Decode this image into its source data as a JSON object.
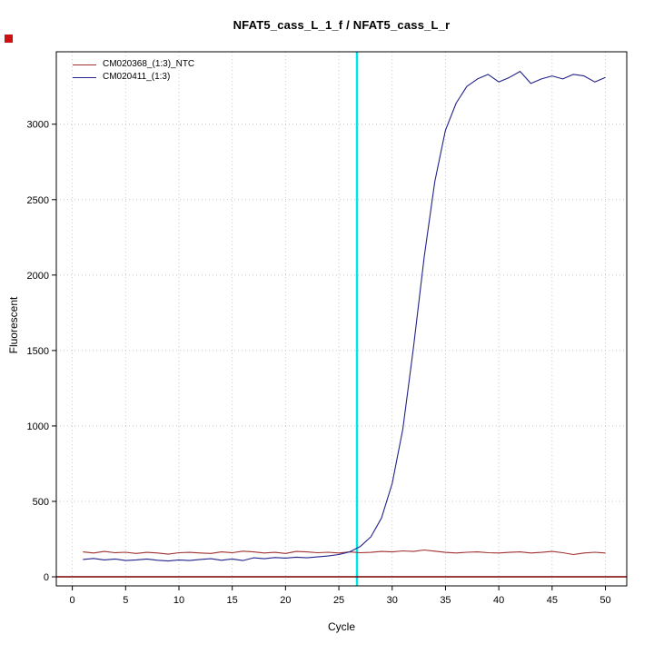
{
  "chart_data": {
    "type": "line",
    "title": "NFAT5_cass_L_1_f / NFAT5_cass_L_r",
    "xlabel": "Cycle",
    "ylabel": "Fluorescent",
    "xlim": [
      -1.5,
      52
    ],
    "ylim": [
      -60,
      3480
    ],
    "xticks": [
      0,
      5,
      10,
      15,
      20,
      25,
      30,
      35,
      40,
      45,
      50
    ],
    "yticks": [
      0,
      500,
      1000,
      1500,
      2000,
      2500,
      3000
    ],
    "grid": true,
    "grid_color": "#c8c8c8",
    "legend_position": "top-left",
    "x": [
      1,
      2,
      3,
      4,
      5,
      6,
      7,
      8,
      9,
      10,
      11,
      12,
      13,
      14,
      15,
      16,
      17,
      18,
      19,
      20,
      21,
      22,
      23,
      24,
      25,
      26,
      27,
      28,
      29,
      30,
      31,
      32,
      33,
      34,
      35,
      36,
      37,
      38,
      39,
      40,
      41,
      42,
      43,
      44,
      45,
      46,
      47,
      48,
      49,
      50
    ],
    "series": [
      {
        "name": "CM020368_(1:3)_NTC",
        "color": "#a03030",
        "values": [
          165,
          158,
          168,
          160,
          163,
          155,
          162,
          158,
          150,
          160,
          162,
          158,
          155,
          165,
          160,
          170,
          165,
          158,
          162,
          155,
          168,
          165,
          160,
          163,
          158,
          165,
          160,
          162,
          168,
          165,
          172,
          168,
          178,
          170,
          162,
          158,
          163,
          165,
          160,
          158,
          162,
          165,
          158,
          162,
          168,
          160,
          148,
          158,
          163,
          158
        ]
      },
      {
        "name": "CM020411_(1:3)",
        "color": "#22228a",
        "values": [
          115,
          122,
          112,
          118,
          108,
          112,
          118,
          110,
          105,
          112,
          108,
          115,
          120,
          110,
          118,
          108,
          126,
          120,
          128,
          124,
          130,
          126,
          132,
          138,
          148,
          165,
          200,
          265,
          390,
          620,
          980,
          1520,
          2120,
          2620,
          2960,
          3140,
          3250,
          3300,
          3330,
          3280,
          3310,
          3350,
          3270,
          3300,
          3320,
          3300,
          3330,
          3320,
          3280,
          3310
        ]
      }
    ],
    "threshold_line": {
      "x": 26.7,
      "color": "#00e5e5"
    },
    "baseline": {
      "y": 0,
      "color": "#7a0000"
    }
  },
  "marker": {
    "color": "#cc1111"
  }
}
